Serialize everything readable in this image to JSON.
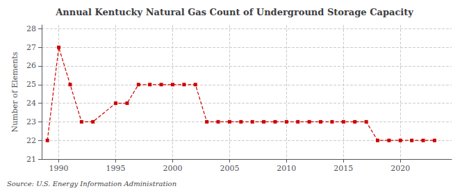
{
  "chart_data": {
    "type": "line",
    "title": "Annual Kentucky Natural Gas Count of Underground Storage Capacity",
    "ylabel": "Number of Elements",
    "annotation": "Source: U.S. Energy Information Administration",
    "x": [
      1989,
      1990,
      1991,
      1992,
      1993,
      1995,
      1996,
      1997,
      1998,
      1999,
      2000,
      2001,
      2002,
      2003,
      2004,
      2005,
      2006,
      2007,
      2008,
      2009,
      2010,
      2011,
      2012,
      2013,
      2014,
      2015,
      2016,
      2017,
      2018,
      2019,
      2020,
      2021,
      2022,
      2023
    ],
    "values": [
      22,
      27,
      25,
      23,
      23,
      24,
      24,
      25,
      25,
      25,
      25,
      25,
      25,
      23,
      23,
      23,
      23,
      23,
      23,
      23,
      23,
      23,
      23,
      23,
      23,
      23,
      23,
      23,
      22,
      22,
      22,
      22,
      22,
      22
    ],
    "color": "#cc0000",
    "marker": "square",
    "line_style": "dashed",
    "xlim": [
      1988.5,
      2024.5
    ],
    "ylim": [
      21,
      28.2
    ],
    "xticks": [
      1990,
      1995,
      2000,
      2005,
      2010,
      2015,
      2020
    ],
    "yticks": [
      21,
      22,
      23,
      24,
      25,
      26,
      27,
      28
    ],
    "grid": true
  }
}
